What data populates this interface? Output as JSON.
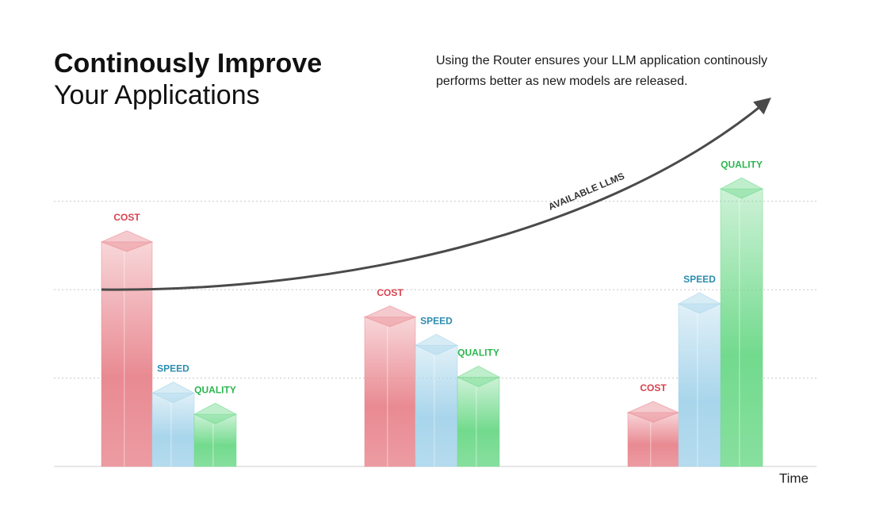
{
  "chart_data": {
    "type": "bar",
    "title": "Continously Improve",
    "subtitle": "Your Applications",
    "description": "Using the Router ensures your LLM application continously performs better as new models are released.",
    "annotation": "AVAILABLE LLMS",
    "x_label": "Time",
    "categories": [
      null,
      null,
      null
    ],
    "series": [
      {
        "name": "COST",
        "color": "#e98a92",
        "values": [
          2.54,
          1.69,
          0.61
        ]
      },
      {
        "name": "SPEED",
        "color": "#a8d5eb",
        "values": [
          0.83,
          1.37,
          1.84
        ]
      },
      {
        "name": "QUALITY",
        "color": "#72da8d",
        "values": [
          0.59,
          1.01,
          3.14
        ]
      }
    ],
    "ylim": [
      0,
      3.5
    ],
    "yticks": [
      1,
      2,
      3
    ],
    "grid": true
  }
}
